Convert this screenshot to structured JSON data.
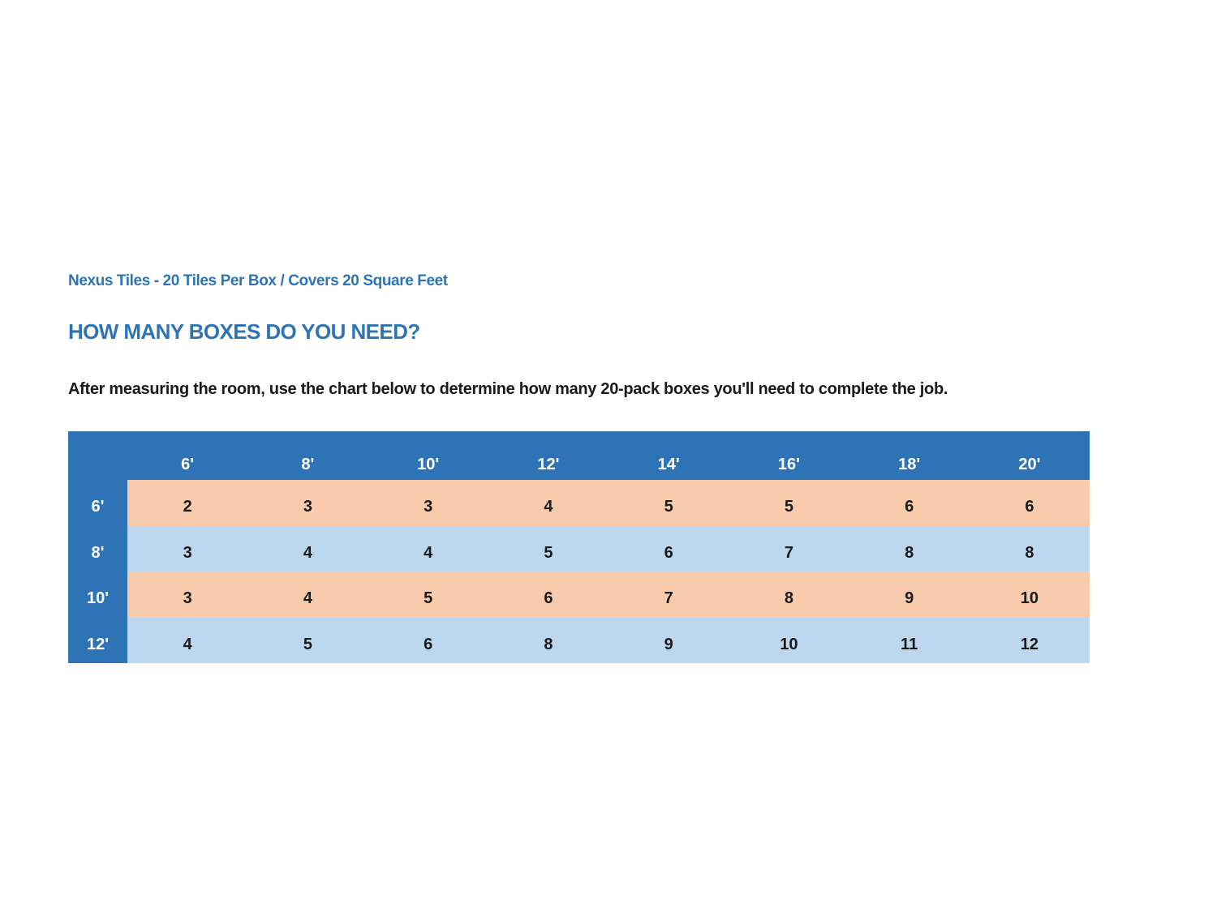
{
  "page": {
    "background_color": "#FFFFFF"
  },
  "document": {
    "subtitle": "Nexus Tiles - 20 Tiles Per Box / Covers 20 Square Feet",
    "heading": "HOW MANY BOXES DO YOU NEED?",
    "instructions": "After measuring the room, use the chart below to determine how many 20-pack boxes you'll need to complete the job."
  },
  "colors": {
    "accent_blue": "#2E74B5",
    "table_header_blue": "#2E73B5",
    "row_peach": "#F7CBAC",
    "row_light_blue": "#BDD7EE",
    "header_text": "#FFFFFF",
    "cell_text": "#1A1A1A"
  },
  "chart_data": {
    "type": "table",
    "column_headers": [
      "6'",
      "8'",
      "10'",
      "12'",
      "14'",
      "16'",
      "18'",
      "20'"
    ],
    "row_headers": [
      "6'",
      "8'",
      "10'",
      "12'"
    ],
    "rows": [
      [
        "2",
        "3",
        "3",
        "4",
        "5",
        "5",
        "6",
        "6"
      ],
      [
        "3",
        "4",
        "4",
        "5",
        "6",
        "7",
        "8",
        "8"
      ],
      [
        "3",
        "4",
        "5",
        "6",
        "7",
        "8",
        "9",
        "10"
      ],
      [
        "4",
        "5",
        "6",
        "8",
        "9",
        "10",
        "11",
        "12"
      ]
    ]
  }
}
